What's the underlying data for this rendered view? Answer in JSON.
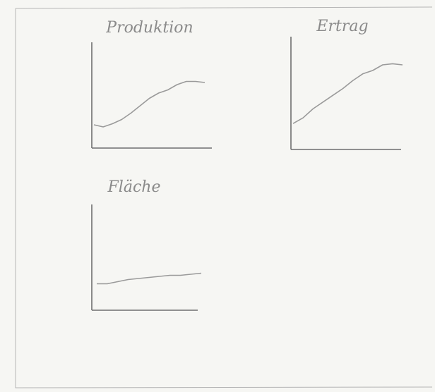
{
  "chart_data": [
    {
      "type": "line",
      "title": "Produktion",
      "color": "#9a9a9a",
      "ylim": [
        0,
        100
      ],
      "values": [
        22,
        20,
        23,
        27,
        33,
        40,
        47,
        52,
        55,
        60,
        63,
        63,
        62
      ]
    },
    {
      "type": "line",
      "title": "Ertrag",
      "color": "#9a9a9a",
      "ylim": [
        0,
        100
      ],
      "values": [
        23,
        28,
        36,
        42,
        48,
        54,
        61,
        67,
        70,
        75,
        76,
        75
      ]
    },
    {
      "type": "line",
      "title": "Fläche",
      "color": "#9a9a9a",
      "ylim": [
        0,
        100
      ],
      "values": [
        25,
        25,
        27,
        29,
        30,
        31,
        32,
        33,
        33,
        34,
        35
      ]
    }
  ]
}
